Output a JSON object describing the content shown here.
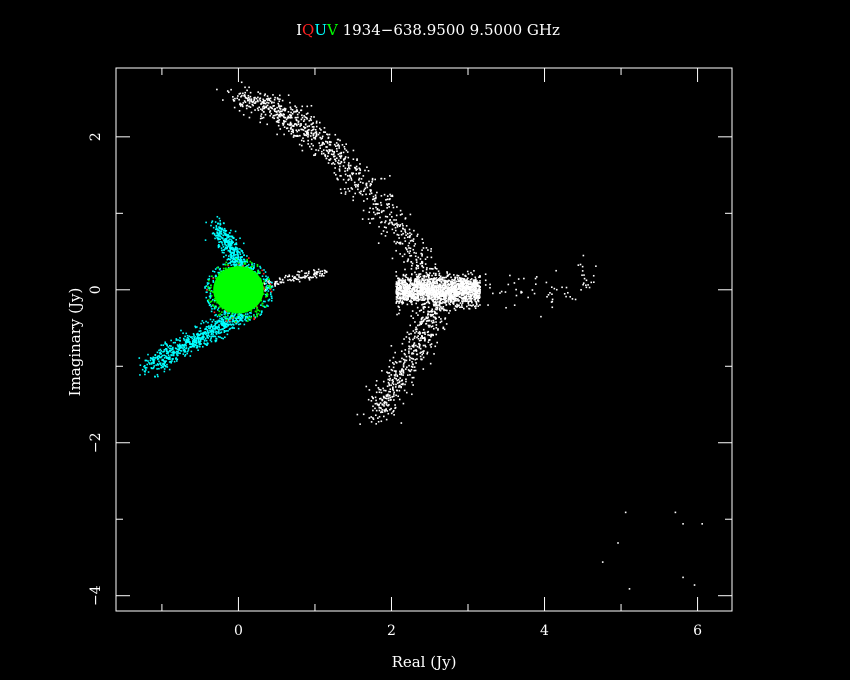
{
  "chart_data": {
    "type": "scatter",
    "title_parts": [
      {
        "text": "I",
        "color": "#ffffff"
      },
      {
        "text": "Q",
        "color": "#ff2020"
      },
      {
        "text": "U",
        "color": "#00ffff"
      },
      {
        "text": "V",
        "color": "#00ff00"
      },
      {
        "text": " 1934−638.9500 9.5000 GHz",
        "color": "#ffffff"
      }
    ],
    "xlabel": "Real (Jy)",
    "ylabel": "Imaginary (Jy)",
    "xlim": [
      -1.6,
      6.45
    ],
    "ylim": [
      -4.2,
      2.9
    ],
    "xticks": [
      0,
      2,
      4,
      6
    ],
    "yticks": [
      2,
      0,
      -2,
      -4
    ],
    "xtick_labels": [
      "0",
      "2",
      "4",
      "6"
    ],
    "ytick_labels": [
      "2",
      "0",
      "−2",
      "−4"
    ],
    "background": "#000000",
    "axis_color": "#ffffff",
    "series": [
      {
        "id": "I",
        "color": "#ffffff"
      },
      {
        "id": "Q",
        "color": "#ff2020"
      },
      {
        "id": "U",
        "color": "#00ffff"
      },
      {
        "id": "V",
        "color": "#00ff00"
      }
    ]
  }
}
